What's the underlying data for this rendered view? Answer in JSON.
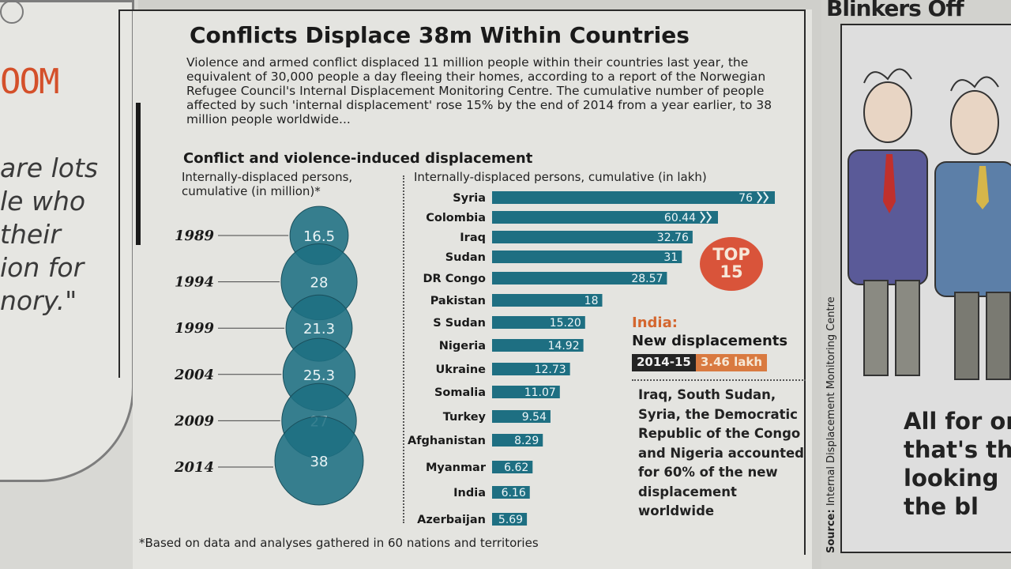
{
  "left_page": {
    "masthead": "OOM",
    "quote_lines": [
      "are lots",
      "le who",
      "their",
      "ion for",
      "nory.\""
    ]
  },
  "title": "Conflicts Displace 38m Within Countries",
  "intro": "Violence and armed conflict displaced 11 million people within their countries last year, the equivalent of 30,000 people a day fleeing their homes, according to a report of the Norwegian Refugee Council's Internal Displacement Monitoring Centre. The cumulative number of people affected by such 'internal displacement' rose 15% by the end of 2014 from a year earlier, to 38 million people worldwide...",
  "subtitle": "Conflict and violence-induced displacement",
  "colors": {
    "bubble": "#1e6f82",
    "bar": "#1e6f82",
    "badge": "#d9543a",
    "india_accent": "#d4662e"
  },
  "chart_data": [
    {
      "type": "bubble",
      "ylabel": "Internally-displaced persons, cumulative (in million)*",
      "categories": [
        "1989",
        "1994",
        "1999",
        "2004",
        "2009",
        "2014"
      ],
      "values": [
        16.5,
        28,
        21.3,
        25.3,
        27,
        38
      ],
      "value_labels": [
        "16.5",
        "28",
        "21.3",
        "25.3",
        "27",
        "38"
      ]
    },
    {
      "type": "bar",
      "orientation": "horizontal",
      "xlabel": "Internally-displaced persons, cumulative (in lakh)",
      "categories": [
        "Syria",
        "Colombia",
        "Iraq",
        "Sudan",
        "DR Congo",
        "Pakistan",
        "S Sudan",
        "Nigeria",
        "Ukraine",
        "Somalia",
        "Turkey",
        "Afghanistan",
        "Myanmar",
        "India",
        "Azerbaijan"
      ],
      "values": [
        76,
        60.44,
        32.76,
        31,
        28.57,
        18,
        15.2,
        14.92,
        12.73,
        11.07,
        9.54,
        8.29,
        6.62,
        6.16,
        5.69
      ],
      "value_labels": [
        "76",
        "60.44",
        "32.76",
        "31",
        "28.57",
        "18",
        "15.20",
        "14.92",
        "12.73",
        "11.07",
        "9.54",
        "8.29",
        "6.62",
        "6.16",
        "5.69"
      ],
      "broken_axis": [
        "Syria",
        "Colombia"
      ]
    }
  ],
  "badge": "TOP 15",
  "india": {
    "heading": "India:",
    "subheading": "New displacements",
    "period": "2014-15",
    "value": "3.46 lakh"
  },
  "note": "Iraq, South Sudan, Syria, the Democratic Republic of the Congo and Nigeria accounted for 60% of the new displacement worldwide",
  "footnote": "*Based on data and analyses gathered in 60 nations and territories",
  "source_label": "Source:",
  "source": "Internal Displacement Monitoring Centre",
  "right_page": {
    "column_title": "Blinkers Off",
    "caption_lines": [
      "All for on",
      "that's th",
      "looking",
      "the bl"
    ]
  }
}
